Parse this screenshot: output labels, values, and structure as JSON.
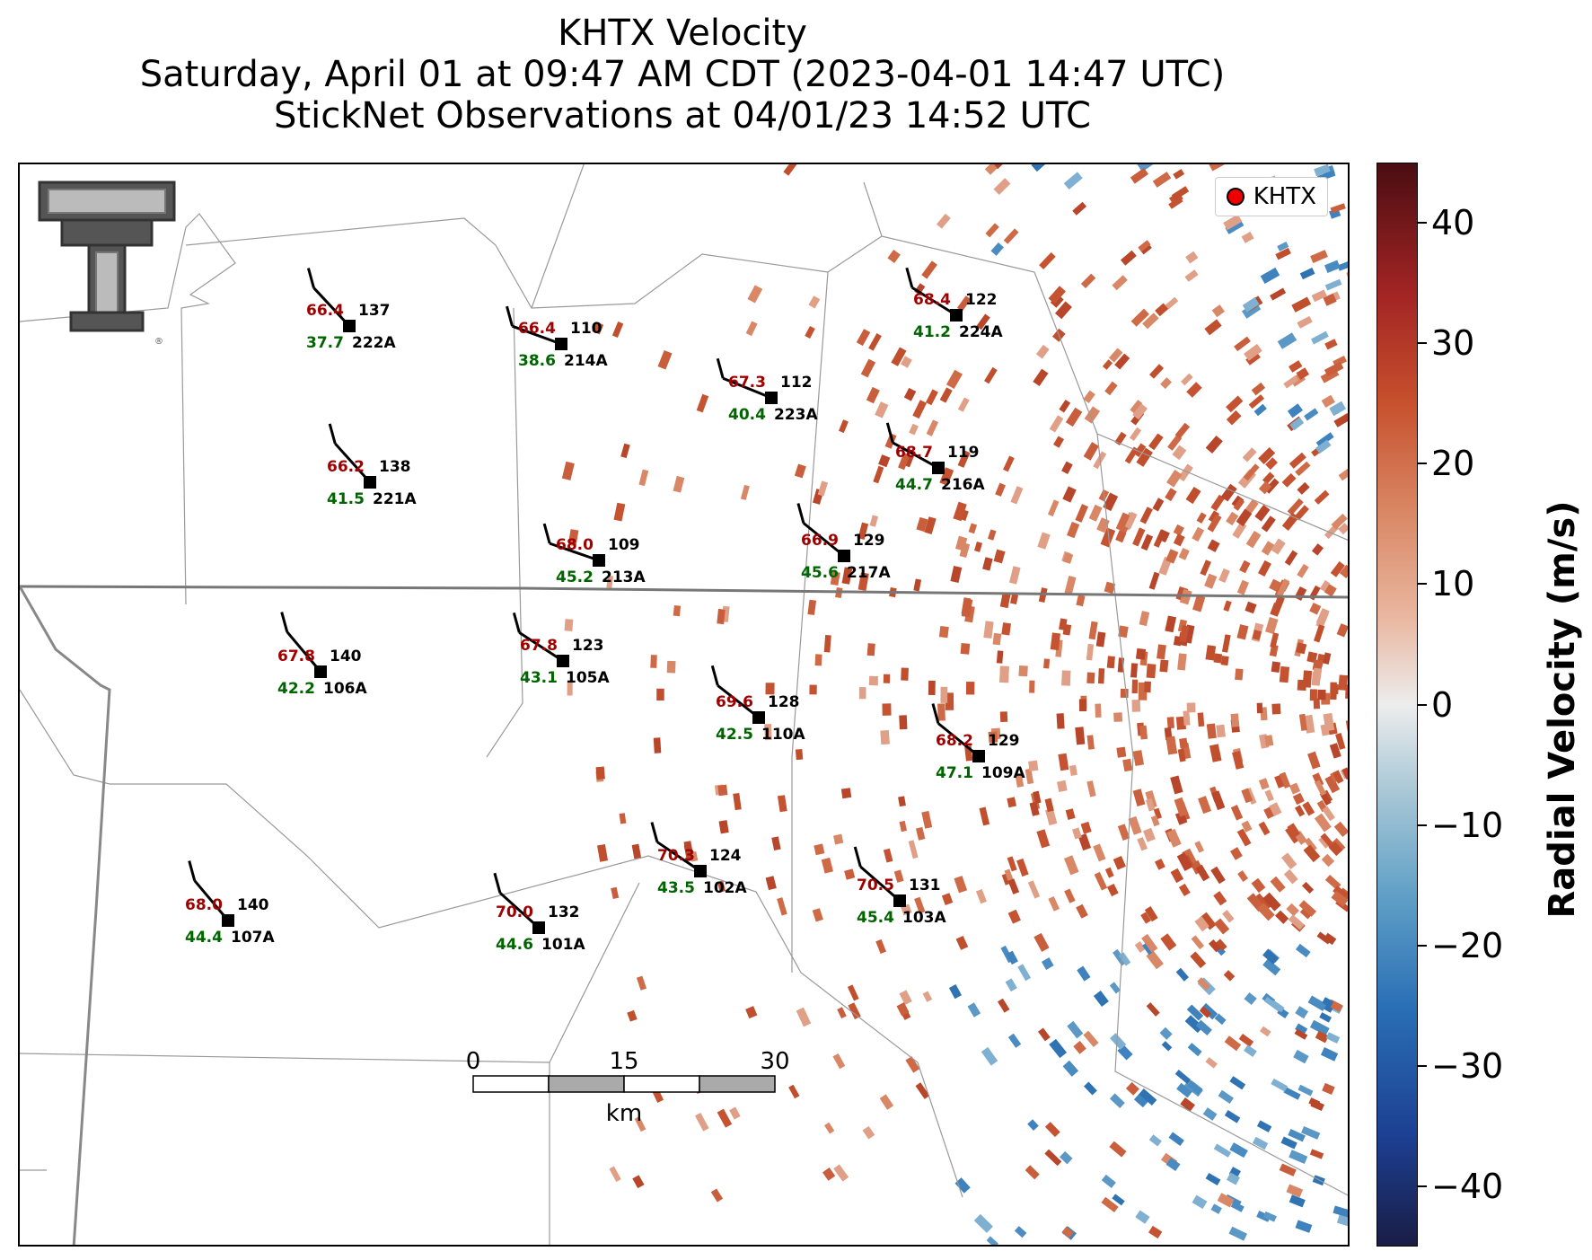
{
  "title": {
    "line1": "KHTX Velocity",
    "line2": "Saturday, April 01 at 09:47 AM CDT (2023-04-01 14:47 UTC)",
    "line3": "StickNet Observations at 04/01/23 14:52 UTC"
  },
  "legend": {
    "label": "KHTX",
    "marker_color": "#e00000"
  },
  "colorbar": {
    "label": "Radial Velocity (m/s)",
    "ticks": [
      "40",
      "30",
      "20",
      "10",
      "0",
      "−10",
      "−20",
      "−30",
      "−40"
    ],
    "tick_values": [
      40,
      30,
      20,
      10,
      0,
      -10,
      -20,
      -30,
      -40
    ],
    "range": [
      -45,
      45
    ],
    "colors": {
      "negative": "#2a6fb5",
      "zero": "#ededed",
      "positive": "#c7502d"
    }
  },
  "scale_bar": {
    "ticks": [
      "0",
      "15",
      "30"
    ],
    "unit": "km"
  },
  "logo": {
    "name": "Texas Tech Double T",
    "mark": "®"
  },
  "colors": {
    "temperature": "#a00000",
    "dewpoint": "#006400",
    "station": "#000000"
  },
  "stations": [
    {
      "id": "222A",
      "temp": "66.4",
      "dew": "37.7",
      "dir": "137"
    },
    {
      "id": "214A",
      "temp": "66.4",
      "dew": "38.6",
      "dir": "110"
    },
    {
      "id": "224A",
      "temp": "68.4",
      "dew": "41.2",
      "dir": "122"
    },
    {
      "id": "223A",
      "temp": "67.3",
      "dew": "40.4",
      "dir": "112"
    },
    {
      "id": "221A",
      "temp": "66.2",
      "dew": "41.5",
      "dir": "138"
    },
    {
      "id": "216A",
      "temp": "68.7",
      "dew": "44.7",
      "dir": "119"
    },
    {
      "id": "213A",
      "temp": "68.0",
      "dew": "45.2",
      "dir": "109"
    },
    {
      "id": "217A",
      "temp": "66.9",
      "dew": "45.6",
      "dir": "129"
    },
    {
      "id": "106A",
      "temp": "67.8",
      "dew": "42.2",
      "dir": "140"
    },
    {
      "id": "105A",
      "temp": "67.8",
      "dew": "43.1",
      "dir": "123"
    },
    {
      "id": "110A",
      "temp": "69.6",
      "dew": "42.5",
      "dir": "128"
    },
    {
      "id": "109A",
      "temp": "68.2",
      "dew": "47.1",
      "dir": "129"
    },
    {
      "id": "102A",
      "temp": "70.3",
      "dew": "43.5",
      "dir": "124"
    },
    {
      "id": "103A",
      "temp": "70.5",
      "dew": "45.4",
      "dir": "131"
    },
    {
      "id": "107A",
      "temp": "68.0",
      "dew": "44.4",
      "dir": "140"
    },
    {
      "id": "101A",
      "temp": "70.0",
      "dew": "44.6",
      "dir": "132"
    }
  ]
}
